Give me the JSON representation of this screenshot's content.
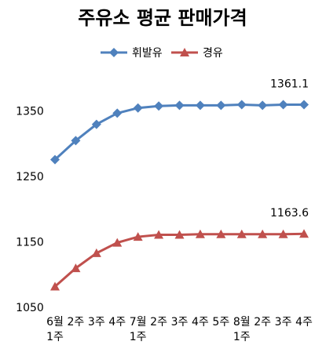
{
  "chart_data": {
    "type": "line",
    "title": "주유소 평균 판매가격",
    "categories": [
      "6월 1주",
      "2주",
      "3주",
      "4주",
      "7월 1주",
      "2주",
      "3주",
      "4주",
      "5주",
      "8월 1주",
      "2주",
      "3주",
      "4주"
    ],
    "series": [
      {
        "name": "휘발유",
        "color": "#4f81bd",
        "marker": "diamond",
        "values": [
          1277,
          1306,
          1331,
          1348,
          1356,
          1359,
          1360,
          1360,
          1360,
          1361,
          1360,
          1361,
          1361.1
        ]
      },
      {
        "name": "경유",
        "color": "#c0504d",
        "marker": "triangle",
        "values": [
          1083,
          1111,
          1134,
          1150,
          1159,
          1162,
          1162,
          1163,
          1163,
          1163,
          1163,
          1163,
          1163.6
        ]
      }
    ],
    "ylim": [
      1050,
      1400
    ],
    "yticks": [
      1050,
      1150,
      1250,
      1350
    ],
    "grid": false
  }
}
